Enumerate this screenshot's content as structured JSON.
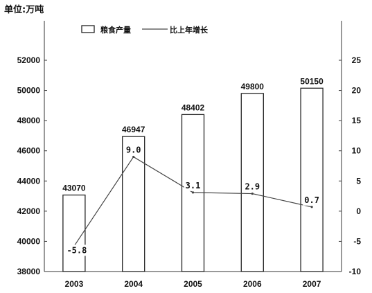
{
  "unit_label": "单位:万吨",
  "chart_data": {
    "type": "bar",
    "categories": [
      "2003",
      "2004",
      "2005",
      "2006",
      "2007"
    ],
    "series": [
      {
        "name": "粮食产量",
        "type": "bar",
        "axis": "left",
        "values": [
          43070,
          46947,
          48402,
          49800,
          50150
        ],
        "labels": [
          "43070",
          "46947",
          "48402",
          "49800",
          "50150"
        ]
      },
      {
        "name": "比上年增长",
        "type": "line",
        "axis": "right",
        "values": [
          -5.8,
          9.0,
          3.1,
          2.9,
          0.7
        ],
        "labels": [
          "-5.8",
          "9.0",
          "3.1",
          "2.9",
          "0.7"
        ]
      }
    ],
    "y_left": {
      "ylim": [
        38000,
        52000
      ],
      "ticks": [
        "38000",
        "40000",
        "42000",
        "44000",
        "46000",
        "48000",
        "50000",
        "52000"
      ]
    },
    "y_right": {
      "ylim": [
        -10,
        25
      ],
      "ticks": [
        "-10",
        "-5",
        "0",
        "5",
        "10",
        "15",
        "20",
        "25"
      ]
    },
    "legend_position": "top",
    "grid": false
  }
}
